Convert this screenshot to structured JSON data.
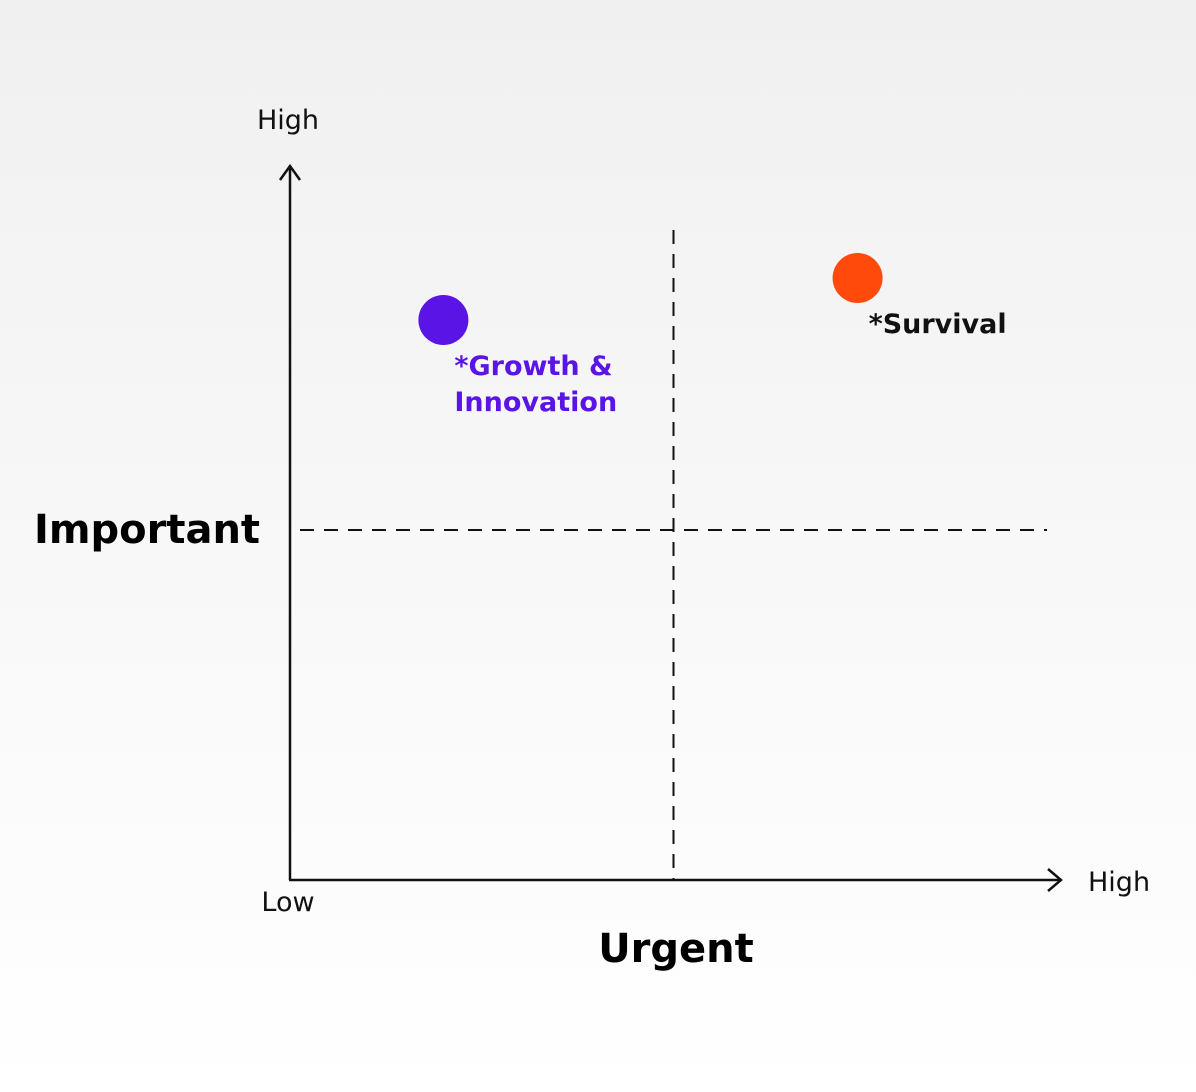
{
  "chart_data": {
    "type": "scatter",
    "title": "",
    "xlabel": "Urgent",
    "ylabel": "Important",
    "x_ticks": {
      "low": "Low",
      "high": "High"
    },
    "y_ticks": {
      "high": "High"
    },
    "xlim": [
      0,
      1
    ],
    "ylim": [
      0,
      1
    ],
    "dividers": {
      "x": 0.5,
      "y": 0.5
    },
    "grid": false,
    "points": [
      {
        "label_lines": [
          "*Growth &",
          "Innovation"
        ],
        "x": 0.2,
        "y": 0.8,
        "color": "#5a14e6",
        "label_color": "#5a14e6"
      },
      {
        "label_lines": [
          "*Survival"
        ],
        "x": 0.74,
        "y": 0.86,
        "color": "#ff4a0c",
        "label_color": "#111111"
      }
    ]
  }
}
